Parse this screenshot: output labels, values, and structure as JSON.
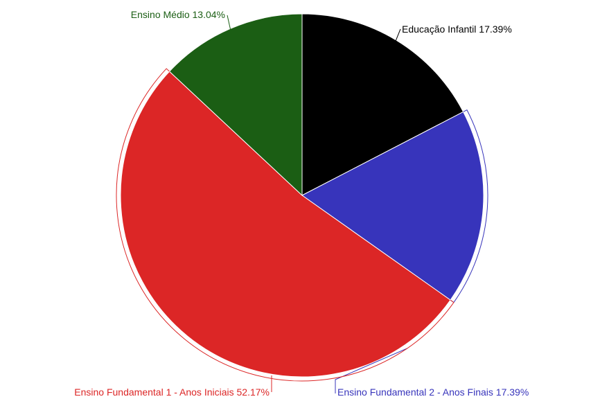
{
  "chart_data": {
    "type": "pie",
    "slices": [
      {
        "label": "Educação Infantil",
        "value": 17.39,
        "display": "17.39%",
        "color": "#000000"
      },
      {
        "label": "Ensino Fundamental 2 - Anos Finais",
        "value": 17.39,
        "display": "17.39%",
        "color": "#3734bb"
      },
      {
        "label": "Ensino Fundamental 1 - Anos Iniciais",
        "value": 52.17,
        "display": "52.17%",
        "color": "#dc2626"
      },
      {
        "label": "Ensino Médio",
        "value": 13.04,
        "display": "13.04%",
        "color": "#1b5e14"
      }
    ],
    "start": "top",
    "direction": "clockwise",
    "legend": "none",
    "label_colors": {
      "Educação Infantil": "#000000",
      "Ensino Fundamental 2 - Anos Finais": "#3734bb",
      "Ensino Fundamental 1 - Anos Iniciais": "#dc2626",
      "Ensino Médio": "#1b5e14"
    }
  }
}
